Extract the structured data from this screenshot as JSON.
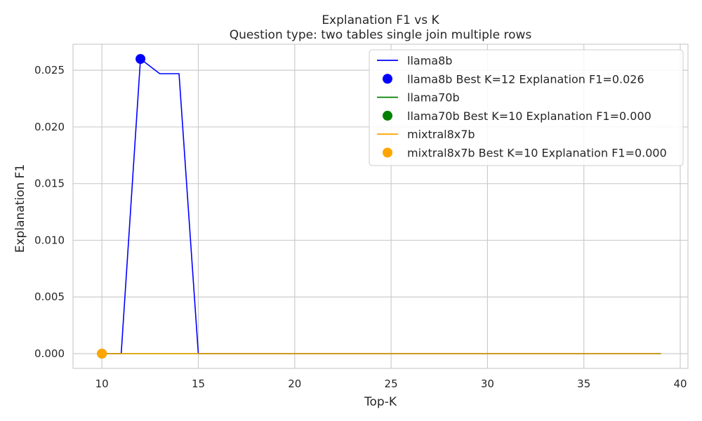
{
  "chart_data": {
    "type": "line",
    "title": "Explanation F1 vs K",
    "subtitle": "Question type: two tables single join multiple rows",
    "xlabel": "Top-K",
    "ylabel": "Explanation F1",
    "xlim": [
      8.5,
      40.4
    ],
    "ylim": [
      -0.0013,
      0.0273
    ],
    "xticks": [
      10,
      15,
      20,
      25,
      30,
      35,
      40
    ],
    "yticks": [
      0.0,
      0.005,
      0.01,
      0.015,
      0.02,
      0.025
    ],
    "ytick_labels": [
      "0.000",
      "0.005",
      "0.010",
      "0.015",
      "0.020",
      "0.025"
    ],
    "grid": true,
    "legend_position": "top-right",
    "x": [
      10,
      11,
      12,
      13,
      14,
      15,
      16,
      17,
      18,
      19,
      20,
      21,
      22,
      23,
      24,
      25,
      26,
      27,
      28,
      29,
      30,
      31,
      32,
      33,
      34,
      35,
      36,
      37,
      38,
      39
    ],
    "series": [
      {
        "name": "llama8b",
        "color": "#0000ff",
        "values": [
          0,
          0,
          0.026,
          0.0247,
          0.0247,
          0,
          0,
          0,
          0,
          0,
          0,
          0,
          0,
          0,
          0,
          0,
          0,
          0,
          0,
          0,
          0,
          0,
          0,
          0,
          0,
          0,
          0,
          0,
          0,
          0
        ],
        "best_label": "llama8b Best K=12 Explanation F1=0.026",
        "best_k": 12,
        "best_value": 0.026
      },
      {
        "name": "llama70b",
        "color": "#008000",
        "values": [
          0,
          0,
          0,
          0,
          0,
          0,
          0,
          0,
          0,
          0,
          0,
          0,
          0,
          0,
          0,
          0,
          0,
          0,
          0,
          0,
          0,
          0,
          0,
          0,
          0,
          0,
          0,
          0,
          0,
          0
        ],
        "best_label": "llama70b Best K=10 Explanation F1=0.000",
        "best_k": 10,
        "best_value": 0.0
      },
      {
        "name": "mixtral8x7b",
        "color": "#ffa500",
        "values": [
          0,
          0,
          0,
          0,
          0,
          0,
          0,
          0,
          0,
          0,
          0,
          0,
          0,
          0,
          0,
          0,
          0,
          0,
          0,
          0,
          0,
          0,
          0,
          0,
          0,
          0,
          0,
          0,
          0,
          0
        ],
        "best_label": "mixtral8x7b Best K=10 Explanation F1=0.000",
        "best_k": 10,
        "best_value": 0.0
      }
    ]
  }
}
